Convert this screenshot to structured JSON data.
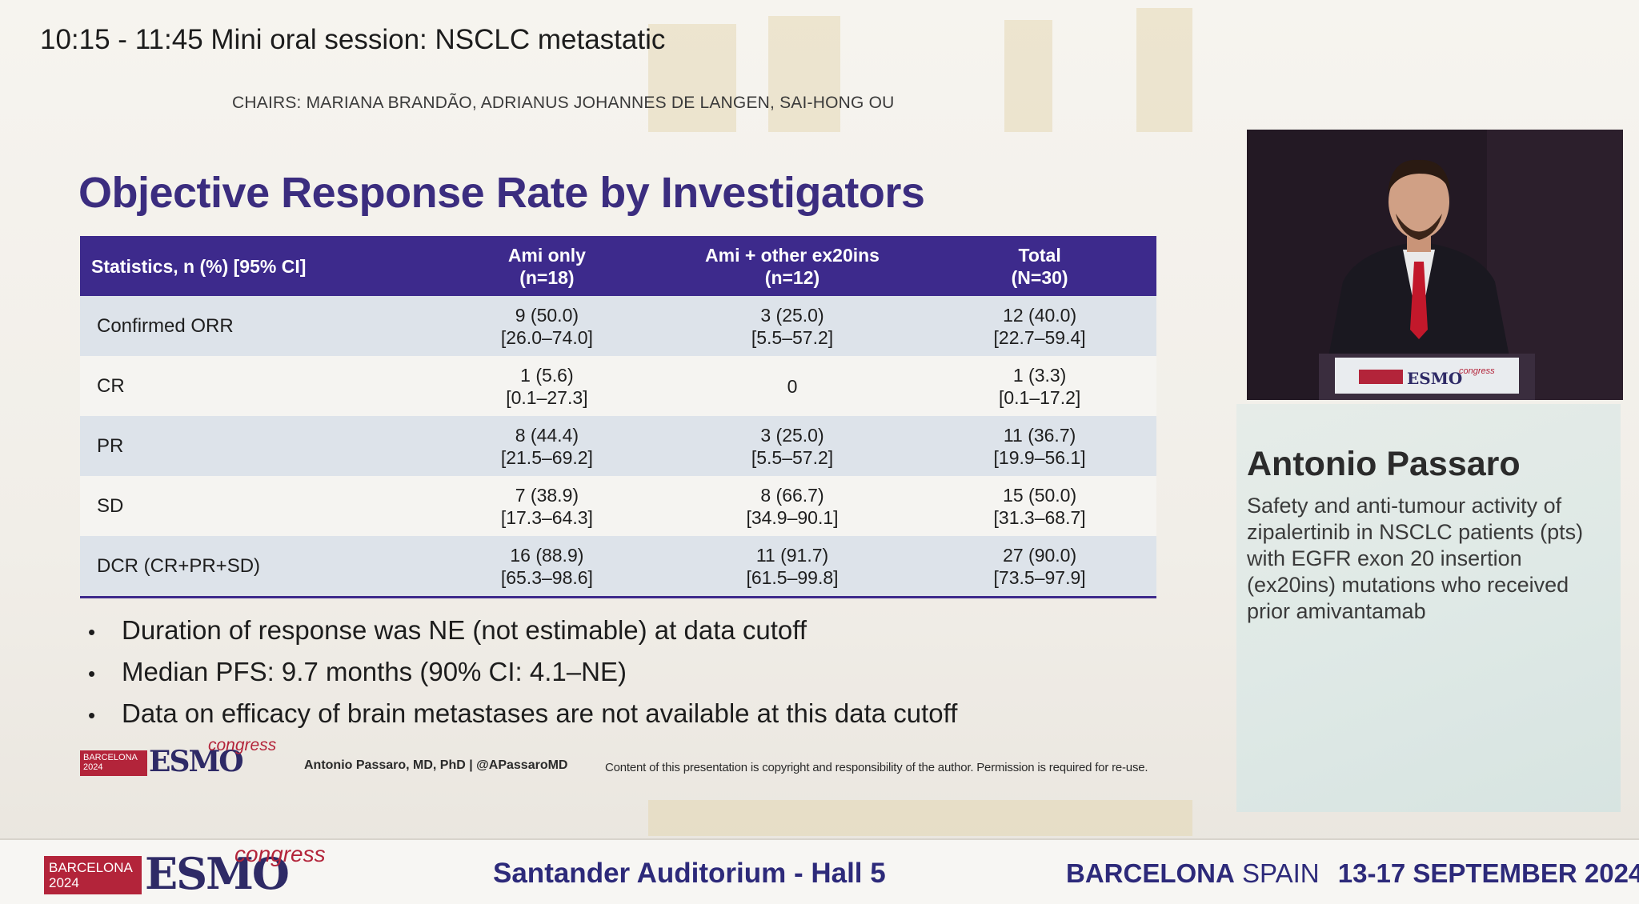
{
  "session": {
    "title": "10:15 - 11:45  Mini oral session: NSCLC metastatic",
    "chairs": "CHAIRS: MARIANA BRANDÃO, ADRIANUS JOHANNES DE LANGEN, SAI-HONG OU"
  },
  "slide": {
    "title": "Objective Response Rate by Investigators",
    "table": {
      "headers": [
        {
          "line1": "Statistics, n (%) [95% CI]",
          "line2": ""
        },
        {
          "line1": "Ami only",
          "line2": "(n=18)"
        },
        {
          "line1": "Ami + other ex20ins",
          "line2": "(n=12)"
        },
        {
          "line1": "Total",
          "line2": "(N=30)"
        }
      ],
      "rows": [
        {
          "label": "Confirmed ORR",
          "cells": [
            [
              "9 (50.0)",
              "[26.0–74.0]"
            ],
            [
              "3 (25.0)",
              "[5.5–57.2]"
            ],
            [
              "12 (40.0)",
              "[22.7–59.4]"
            ]
          ]
        },
        {
          "label": "CR",
          "cells": [
            [
              "1 (5.6)",
              "[0.1–27.3]"
            ],
            [
              "0",
              ""
            ],
            [
              "1 (3.3)",
              "[0.1–17.2]"
            ]
          ]
        },
        {
          "label": "PR",
          "cells": [
            [
              "8 (44.4)",
              "[21.5–69.2]"
            ],
            [
              "3 (25.0)",
              "[5.5–57.2]"
            ],
            [
              "11 (36.7)",
              "[19.9–56.1]"
            ]
          ]
        },
        {
          "label": "SD",
          "cells": [
            [
              "7 (38.9)",
              "[17.3–64.3]"
            ],
            [
              "8 (66.7)",
              "[34.9–90.1]"
            ],
            [
              "15 (50.0)",
              "[31.3–68.7]"
            ]
          ]
        },
        {
          "label": "DCR (CR+PR+SD)",
          "cells": [
            [
              "16 (88.9)",
              "[65.3–98.6]"
            ],
            [
              "11 (91.7)",
              "[61.5–99.8]"
            ],
            [
              "27 (90.0)",
              "[73.5–97.9]"
            ]
          ]
        }
      ]
    },
    "bullets": [
      "Duration of response was NE (not estimable) at data cutoff",
      "Median PFS: 9.7 months (90% CI: 4.1–NE)",
      "Data on efficacy of brain metastases are not available at this data cutoff"
    ],
    "footer": {
      "author": "Antonio Passaro, MD, PhD | @APassaroMD",
      "copyright": "Content of this presentation is copyright and responsibility of the author. Permission is required for re-use."
    }
  },
  "logo": {
    "city": "BARCELONA",
    "year": "2024",
    "word": "ESMO",
    "congress": "congress"
  },
  "speaker": {
    "name": "Antonio Passaro",
    "talk_title": "Safety and anti-tumour activity of zipalertinib in NSCLC patients (pts) with EGFR exon 20 insertion (ex20ins) mutations who received prior amivantamab"
  },
  "bottom_bar": {
    "venue": "Santander Auditorium - Hall 5",
    "city": "BARCELONA",
    "country": "SPAIN",
    "dates": "13-17 SEPTEMBER 2024"
  },
  "colors": {
    "slide_title": "#3b2d7f",
    "table_header": "#3d2a8c",
    "row_shade": "#dde3ea",
    "esmo_red": "#b3243a",
    "esmo_navy": "#2e2a66"
  }
}
